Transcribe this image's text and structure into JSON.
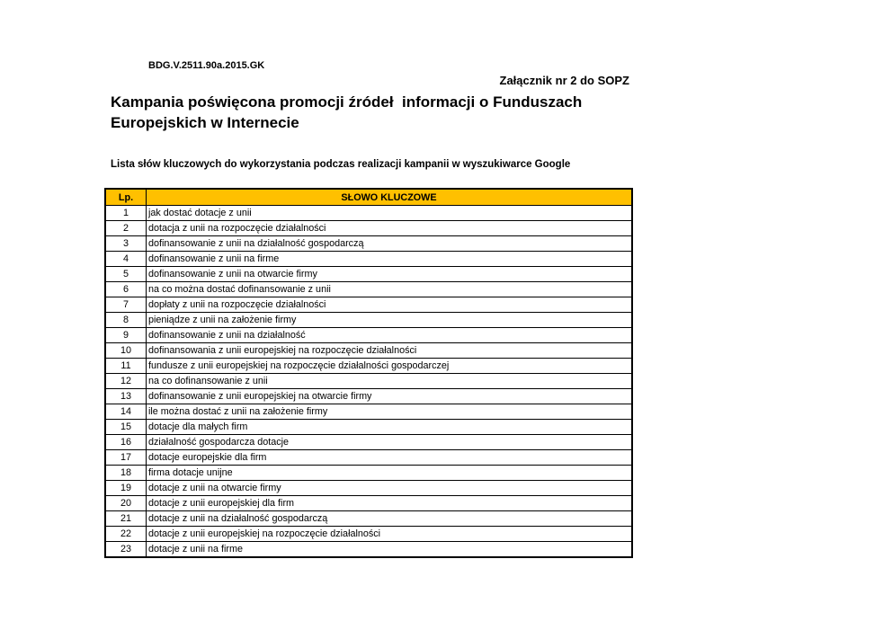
{
  "document": {
    "reference": "BDG.V.2511.90a.2015.GK",
    "annex": "Załącznik nr 2 do SOPZ",
    "title_line1": "Kampania poświęcona promocji źródeł  informacji o Funduszach",
    "title_line2": "Europejskich w Internecie",
    "subtitle": "Lista słów kluczowych do wykorzystania podczas realizacji kampanii w wyszukiwarce Google"
  },
  "table": {
    "header_color": "#ffc000",
    "columns": [
      "Lp.",
      "SŁOWO KLUCZOWE"
    ],
    "rows": [
      {
        "lp": "1",
        "keyword": "jak dostać dotacje z unii"
      },
      {
        "lp": "2",
        "keyword": "dotacja z unii na rozpoczęcie działalności"
      },
      {
        "lp": "3",
        "keyword": "dofinansowanie z unii na działalność gospodarczą"
      },
      {
        "lp": "4",
        "keyword": "dofinansowanie z unii na firme"
      },
      {
        "lp": "5",
        "keyword": "dofinansowanie z unii na otwarcie firmy"
      },
      {
        "lp": "6",
        "keyword": "na co można dostać dofinansowanie z unii"
      },
      {
        "lp": "7",
        "keyword": "dopłaty z unii na rozpoczęcie działalności"
      },
      {
        "lp": "8",
        "keyword": "pieniądze z unii na założenie firmy"
      },
      {
        "lp": "9",
        "keyword": "dofinansowanie z unii na działalność"
      },
      {
        "lp": "10",
        "keyword": "dofinansowania z unii europejskiej na rozpoczęcie działalności"
      },
      {
        "lp": "11",
        "keyword": "fundusze z unii europejskiej na rozpoczęcie działalności gospodarczej"
      },
      {
        "lp": "12",
        "keyword": "na co dofinansowanie z unii"
      },
      {
        "lp": "13",
        "keyword": "dofinansowanie z unii europejskiej na otwarcie firmy"
      },
      {
        "lp": "14",
        "keyword": "ile można dostać z unii na założenie firmy"
      },
      {
        "lp": "15",
        "keyword": "dotacje dla małych firm"
      },
      {
        "lp": "16",
        "keyword": "działalność gospodarcza dotacje"
      },
      {
        "lp": "17",
        "keyword": "dotacje europejskie dla firm"
      },
      {
        "lp": "18",
        "keyword": "firma dotacje unijne"
      },
      {
        "lp": "19",
        "keyword": "dotacje z unii na otwarcie firmy"
      },
      {
        "lp": "20",
        "keyword": "dotacje z unii europejskiej dla firm"
      },
      {
        "lp": "21",
        "keyword": "dotacje z unii na działalność gospodarczą"
      },
      {
        "lp": "22",
        "keyword": "dotacje z unii europejskiej na rozpoczęcie działalności"
      },
      {
        "lp": "23",
        "keyword": "dotacje z unii na firme"
      }
    ]
  }
}
